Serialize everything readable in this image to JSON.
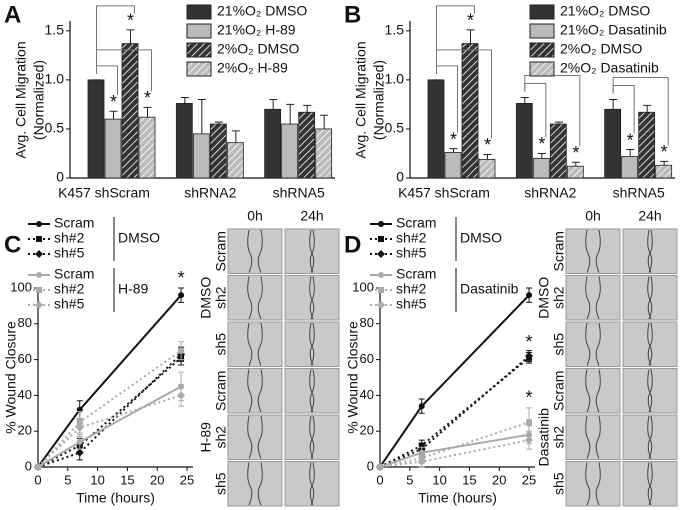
{
  "chart_data": [
    {
      "panel": "A",
      "type": "bar",
      "ylabel": [
        "Avg. Cell Migration",
        "(Normalized)"
      ],
      "categories": [
        "K457 shScram",
        "shRNA2",
        "shRNA5"
      ],
      "ylim": [
        0,
        1.6
      ],
      "yticks": [
        0,
        0.5,
        {
          "value": 1,
          "label": "1.0"
        },
        1.5
      ],
      "series": [
        {
          "name": "21%O₂ DMSO",
          "color": "#333333",
          "hatch": false,
          "values": [
            1.0,
            0.76,
            0.7
          ],
          "errors": [
            0,
            0.06,
            0.1
          ]
        },
        {
          "name": "21%O₂ H-89",
          "color": "#bbbbbb",
          "hatch": false,
          "values": [
            0.6,
            0.45,
            0.55
          ],
          "errors": [
            0.08,
            0.35,
            0.2
          ],
          "value_labels": [
            "*",
            null,
            null
          ]
        },
        {
          "name": "2%O₂ DMSO",
          "color": "#333333",
          "hatch": true,
          "values": [
            1.37,
            0.55,
            0.67
          ],
          "errors": [
            0.14,
            0.02,
            0.07
          ],
          "value_labels": [
            "*",
            null,
            null
          ]
        },
        {
          "name": "2%O₂ H-89",
          "color": "#bbbbbb",
          "hatch": true,
          "values": [
            0.62,
            0.36,
            0.5
          ],
          "errors": [
            0.1,
            0.12,
            0.14
          ],
          "value_labels": [
            "*",
            null,
            null
          ]
        }
      ]
    },
    {
      "panel": "B",
      "type": "bar",
      "ylabel": [
        "Avg. Cell Migration",
        "(Normalized)"
      ],
      "categories": [
        "K457 shScram",
        "shRNA2",
        "shRNA5"
      ],
      "ylim": [
        0,
        1.6
      ],
      "yticks": [
        0,
        0.5,
        {
          "value": 1,
          "label": "1.0"
        },
        1.5
      ],
      "series": [
        {
          "name": "21%O₂ DMSO",
          "color": "#333333",
          "hatch": false,
          "values": [
            1.0,
            0.76,
            0.7
          ],
          "errors": [
            0,
            0.06,
            0.1
          ]
        },
        {
          "name": "21%O₂ Dasatinib",
          "color": "#bbbbbb",
          "hatch": false,
          "values": [
            0.26,
            0.2,
            0.22
          ],
          "errors": [
            0.04,
            0.05,
            0.07
          ],
          "value_labels": [
            "*",
            "*",
            "*"
          ]
        },
        {
          "name": "2%O₂ DMSO",
          "color": "#333333",
          "hatch": true,
          "values": [
            1.37,
            0.55,
            0.67
          ],
          "errors": [
            0.14,
            0.02,
            0.07
          ],
          "value_labels": [
            "*",
            null,
            null
          ]
        },
        {
          "name": "2%O₂ Dasatinib",
          "color": "#bbbbbb",
          "hatch": true,
          "values": [
            0.19,
            0.12,
            0.13
          ],
          "errors": [
            0.05,
            0.04,
            0.04
          ],
          "value_labels": [
            "*",
            "*",
            "*"
          ]
        }
      ]
    },
    {
      "panel": "C",
      "type": "line",
      "ylabel": "% Wound Closure",
      "xlabel": "Time (hours)",
      "x": [
        0,
        7,
        24
      ],
      "xlim": [
        0,
        26
      ],
      "xticks": [
        0,
        5,
        10,
        15,
        20,
        25
      ],
      "ylim": [
        0,
        100
      ],
      "yticks": [
        0,
        20,
        40,
        60,
        80,
        100
      ],
      "groups": [
        "DMSO",
        "H-89"
      ],
      "series": [
        {
          "name": "Scram",
          "group": 0,
          "color": "#111111",
          "dash": false,
          "marker": "circle",
          "values": [
            0,
            32,
            96
          ],
          "errors": [
            0,
            5,
            4
          ],
          "value_labels": [
            null,
            null,
            "*"
          ]
        },
        {
          "name": "sh#2",
          "group": 0,
          "color": "#111111",
          "dash": true,
          "marker": "square",
          "values": [
            0,
            12,
            61
          ],
          "errors": [
            0,
            4,
            4
          ]
        },
        {
          "name": "sh#5",
          "group": 0,
          "color": "#111111",
          "dash": true,
          "marker": "diamond",
          "values": [
            0,
            8,
            63
          ],
          "errors": [
            0,
            4,
            4
          ]
        },
        {
          "name": "Scram",
          "group": 1,
          "color": "#aaaaaa",
          "dash": false,
          "marker": "circle",
          "values": [
            0,
            14,
            45
          ],
          "errors": [
            0,
            4,
            8
          ]
        },
        {
          "name": "sh#2",
          "group": 1,
          "color": "#aaaaaa",
          "dash": true,
          "marker": "square",
          "values": [
            0,
            25,
            65
          ],
          "errors": [
            0,
            6,
            5
          ]
        },
        {
          "name": "sh#5",
          "group": 1,
          "color": "#aaaaaa",
          "dash": true,
          "marker": "diamond",
          "values": [
            0,
            22,
            40
          ],
          "errors": [
            0,
            5,
            6
          ]
        }
      ],
      "images": {
        "columns": [
          "0h",
          "24h"
        ],
        "rows": [
          "Scram",
          "sh2",
          "sh5",
          "Scram",
          "sh2",
          "sh5"
        ],
        "groups": [
          "DMSO",
          "H-89"
        ]
      }
    },
    {
      "panel": "D",
      "type": "line",
      "ylabel": "% Wound Closure",
      "xlabel": "Time (hours)",
      "x": [
        0,
        7,
        25
      ],
      "xlim": [
        0,
        26
      ],
      "xticks": [
        0,
        5,
        10,
        15,
        20,
        25
      ],
      "ylim": [
        0,
        100
      ],
      "yticks": [
        0,
        20,
        40,
        60,
        80,
        100
      ],
      "groups": [
        "DMSO",
        "Dasatinib"
      ],
      "series": [
        {
          "name": "Scram",
          "group": 0,
          "color": "#111111",
          "dash": false,
          "marker": "circle",
          "values": [
            0,
            34,
            96
          ],
          "errors": [
            0,
            4,
            4
          ]
        },
        {
          "name": "sh#2",
          "group": 0,
          "color": "#111111",
          "dash": true,
          "marker": "square",
          "values": [
            0,
            12,
            61
          ],
          "errors": [
            0,
            3,
            3
          ],
          "value_labels": [
            null,
            null,
            "*"
          ]
        },
        {
          "name": "sh#5",
          "group": 0,
          "color": "#111111",
          "dash": true,
          "marker": "diamond",
          "values": [
            0,
            10,
            62
          ],
          "errors": [
            0,
            3,
            3
          ]
        },
        {
          "name": "Scram",
          "group": 1,
          "color": "#aaaaaa",
          "dash": false,
          "marker": "circle",
          "values": [
            0,
            8,
            18
          ],
          "errors": [
            0,
            3,
            5
          ]
        },
        {
          "name": "sh#2",
          "group": 1,
          "color": "#aaaaaa",
          "dash": true,
          "marker": "square",
          "values": [
            0,
            5,
            25
          ],
          "errors": [
            0,
            3,
            8
          ],
          "value_labels": [
            null,
            null,
            "*"
          ]
        },
        {
          "name": "sh#5",
          "group": 1,
          "color": "#aaaaaa",
          "dash": true,
          "marker": "diamond",
          "values": [
            0,
            3,
            15
          ],
          "errors": [
            0,
            3,
            5
          ]
        }
      ],
      "images": {
        "columns": [
          "0h",
          "24h"
        ],
        "rows": [
          "Scram",
          "sh2",
          "sh5",
          "Scram",
          "sh2",
          "sh5"
        ],
        "groups": [
          "DMSO",
          "Dasatinib"
        ]
      }
    }
  ]
}
